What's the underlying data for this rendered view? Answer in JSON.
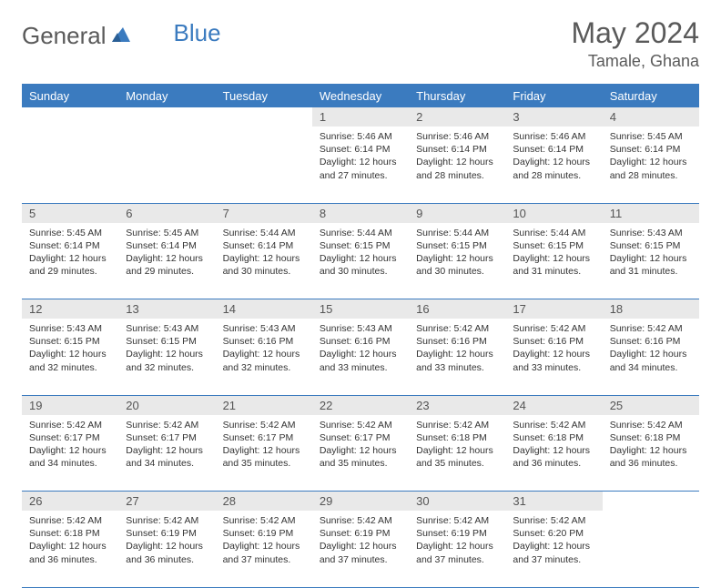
{
  "brand": {
    "part1": "General",
    "part2": "Blue"
  },
  "title": "May 2024",
  "location": "Tamale, Ghana",
  "colors": {
    "header_bg": "#3b7bbf",
    "header_text": "#ffffff",
    "daynum_bg": "#e9e9e9",
    "border": "#3b7bbf",
    "text": "#333333",
    "logo_gray": "#5a5a5a",
    "logo_blue": "#3b7bbf",
    "page_bg": "#ffffff"
  },
  "weekdays": [
    "Sunday",
    "Monday",
    "Tuesday",
    "Wednesday",
    "Thursday",
    "Friday",
    "Saturday"
  ],
  "weeks": [
    [
      null,
      null,
      null,
      {
        "n": "1",
        "sr": "5:46 AM",
        "ss": "6:14 PM",
        "dl": "12 hours and 27 minutes."
      },
      {
        "n": "2",
        "sr": "5:46 AM",
        "ss": "6:14 PM",
        "dl": "12 hours and 28 minutes."
      },
      {
        "n": "3",
        "sr": "5:46 AM",
        "ss": "6:14 PM",
        "dl": "12 hours and 28 minutes."
      },
      {
        "n": "4",
        "sr": "5:45 AM",
        "ss": "6:14 PM",
        "dl": "12 hours and 28 minutes."
      }
    ],
    [
      {
        "n": "5",
        "sr": "5:45 AM",
        "ss": "6:14 PM",
        "dl": "12 hours and 29 minutes."
      },
      {
        "n": "6",
        "sr": "5:45 AM",
        "ss": "6:14 PM",
        "dl": "12 hours and 29 minutes."
      },
      {
        "n": "7",
        "sr": "5:44 AM",
        "ss": "6:14 PM",
        "dl": "12 hours and 30 minutes."
      },
      {
        "n": "8",
        "sr": "5:44 AM",
        "ss": "6:15 PM",
        "dl": "12 hours and 30 minutes."
      },
      {
        "n": "9",
        "sr": "5:44 AM",
        "ss": "6:15 PM",
        "dl": "12 hours and 30 minutes."
      },
      {
        "n": "10",
        "sr": "5:44 AM",
        "ss": "6:15 PM",
        "dl": "12 hours and 31 minutes."
      },
      {
        "n": "11",
        "sr": "5:43 AM",
        "ss": "6:15 PM",
        "dl": "12 hours and 31 minutes."
      }
    ],
    [
      {
        "n": "12",
        "sr": "5:43 AM",
        "ss": "6:15 PM",
        "dl": "12 hours and 32 minutes."
      },
      {
        "n": "13",
        "sr": "5:43 AM",
        "ss": "6:15 PM",
        "dl": "12 hours and 32 minutes."
      },
      {
        "n": "14",
        "sr": "5:43 AM",
        "ss": "6:16 PM",
        "dl": "12 hours and 32 minutes."
      },
      {
        "n": "15",
        "sr": "5:43 AM",
        "ss": "6:16 PM",
        "dl": "12 hours and 33 minutes."
      },
      {
        "n": "16",
        "sr": "5:42 AM",
        "ss": "6:16 PM",
        "dl": "12 hours and 33 minutes."
      },
      {
        "n": "17",
        "sr": "5:42 AM",
        "ss": "6:16 PM",
        "dl": "12 hours and 33 minutes."
      },
      {
        "n": "18",
        "sr": "5:42 AM",
        "ss": "6:16 PM",
        "dl": "12 hours and 34 minutes."
      }
    ],
    [
      {
        "n": "19",
        "sr": "5:42 AM",
        "ss": "6:17 PM",
        "dl": "12 hours and 34 minutes."
      },
      {
        "n": "20",
        "sr": "5:42 AM",
        "ss": "6:17 PM",
        "dl": "12 hours and 34 minutes."
      },
      {
        "n": "21",
        "sr": "5:42 AM",
        "ss": "6:17 PM",
        "dl": "12 hours and 35 minutes."
      },
      {
        "n": "22",
        "sr": "5:42 AM",
        "ss": "6:17 PM",
        "dl": "12 hours and 35 minutes."
      },
      {
        "n": "23",
        "sr": "5:42 AM",
        "ss": "6:18 PM",
        "dl": "12 hours and 35 minutes."
      },
      {
        "n": "24",
        "sr": "5:42 AM",
        "ss": "6:18 PM",
        "dl": "12 hours and 36 minutes."
      },
      {
        "n": "25",
        "sr": "5:42 AM",
        "ss": "6:18 PM",
        "dl": "12 hours and 36 minutes."
      }
    ],
    [
      {
        "n": "26",
        "sr": "5:42 AM",
        "ss": "6:18 PM",
        "dl": "12 hours and 36 minutes."
      },
      {
        "n": "27",
        "sr": "5:42 AM",
        "ss": "6:19 PM",
        "dl": "12 hours and 36 minutes."
      },
      {
        "n": "28",
        "sr": "5:42 AM",
        "ss": "6:19 PM",
        "dl": "12 hours and 37 minutes."
      },
      {
        "n": "29",
        "sr": "5:42 AM",
        "ss": "6:19 PM",
        "dl": "12 hours and 37 minutes."
      },
      {
        "n": "30",
        "sr": "5:42 AM",
        "ss": "6:19 PM",
        "dl": "12 hours and 37 minutes."
      },
      {
        "n": "31",
        "sr": "5:42 AM",
        "ss": "6:20 PM",
        "dl": "12 hours and 37 minutes."
      },
      null
    ]
  ],
  "labels": {
    "sunrise": "Sunrise:",
    "sunset": "Sunset:",
    "daylight": "Daylight:"
  }
}
